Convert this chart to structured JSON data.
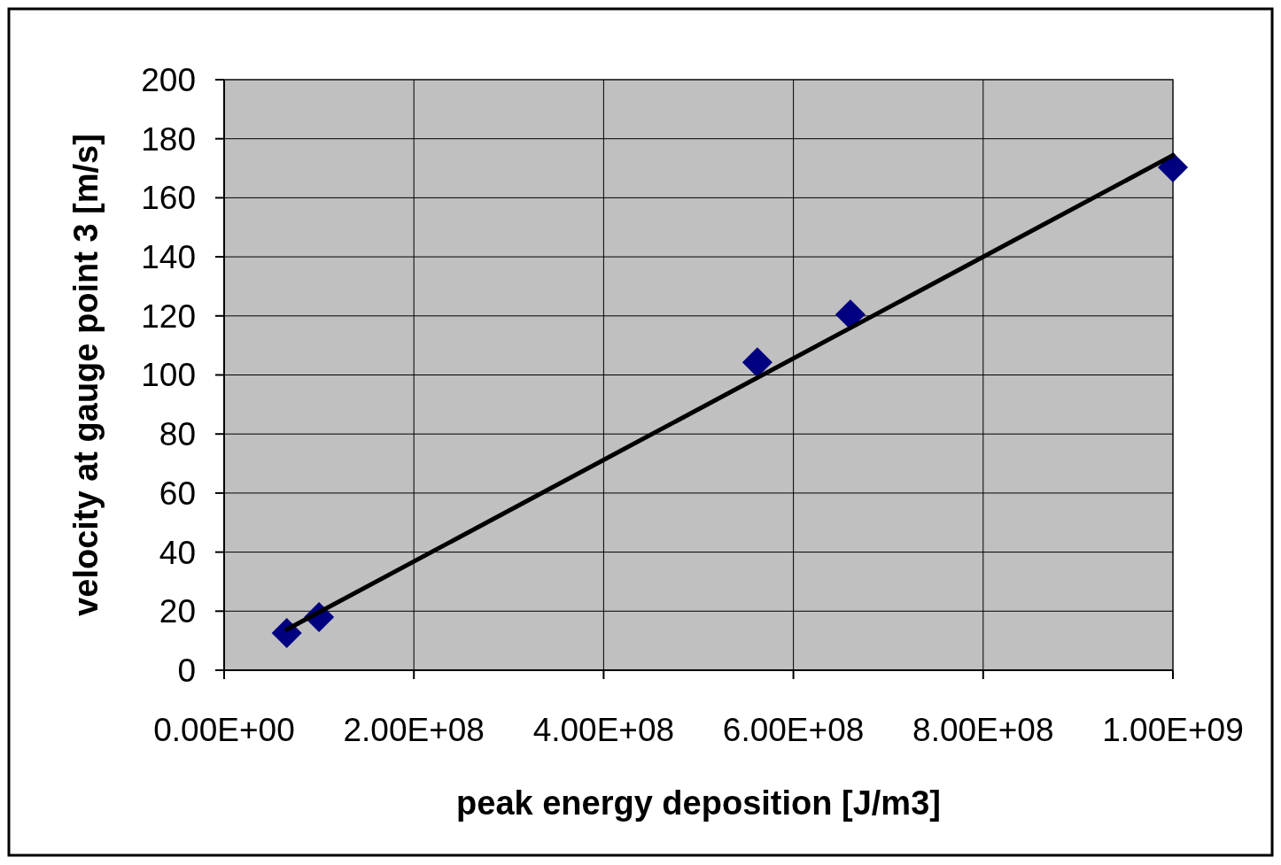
{
  "chart_data": {
    "type": "scatter",
    "xlabel": "peak energy deposition [J/m3]",
    "ylabel": "velocity at gauge point 3 [m/s]",
    "xlim": [
      0,
      1000000000
    ],
    "ylim": [
      0,
      200
    ],
    "xticks": [
      {
        "value": 0,
        "label": "0.00E+00"
      },
      {
        "value": 200000000,
        "label": "2.00E+08"
      },
      {
        "value": 400000000,
        "label": "4.00E+08"
      },
      {
        "value": 600000000,
        "label": "6.00E+08"
      },
      {
        "value": 800000000,
        "label": "8.00E+08"
      },
      {
        "value": 1000000000,
        "label": "1.00E+09"
      }
    ],
    "yticks": [
      0,
      20,
      40,
      60,
      80,
      100,
      120,
      140,
      160,
      180,
      200
    ],
    "grid": true,
    "series": [
      {
        "marker": "diamond",
        "color": "#000080",
        "x": [
          66000000,
          100000000,
          562000000,
          660000000,
          1000000000
        ],
        "values": [
          12.6,
          18,
          104.3,
          120.5,
          170.3
        ]
      },
      {
        "type": "line",
        "color": "#000000",
        "x": [
          66000000,
          1000000000
        ],
        "values": [
          13.8,
          174.4
        ]
      }
    ]
  }
}
